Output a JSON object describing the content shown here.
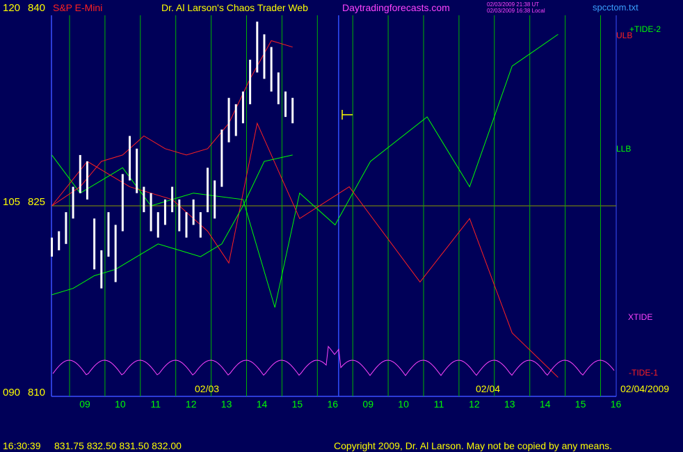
{
  "header": {
    "left_price_top": "120",
    "left_value_top": "840",
    "symbol": "S&P E-Mini",
    "title": "Dr. Al Larson's Chaos Trader Web",
    "site": "Daytradingforecasts.com",
    "stamp_ut": "02/03/2009 21:38 UT",
    "stamp_local": "02/03/2009 16:38 Local",
    "file": "spcctom.txt"
  },
  "left_axis": {
    "mid_price": "105",
    "mid_value": "825",
    "bottom_price": "090",
    "bottom_value": "810"
  },
  "labels": {
    "tide2": "+TIDE-2",
    "ulb": "ULB",
    "llb": "LLB",
    "xtide": "XTIDE",
    "tide1": "-TIDE-1",
    "date_a": "02/03",
    "date_b": "02/04",
    "date_end": "02/04/2009"
  },
  "footer": {
    "time": "16:30:39",
    "quote": "831.75 832.50 831.50 832.00",
    "copyright": "Copyright 2009, Dr. Al Larson. May not be copied by any means."
  },
  "colors": {
    "background": "#000058",
    "grid": "#00b400",
    "price": "#ffffff",
    "ulb": "#ff2020",
    "llb": "#00ff00",
    "xtide": "#ff44ff",
    "axis": "#3a50ff",
    "text": "#ffff00"
  },
  "chart_data": {
    "type": "line",
    "title": "S&P E-Mini",
    "x_tick_labels": [
      "09",
      "10",
      "11",
      "12",
      "13",
      "14",
      "15",
      "16",
      "09",
      "10",
      "11",
      "12",
      "13",
      "14",
      "15",
      "16"
    ],
    "sessions": [
      "02/03",
      "02/04"
    ],
    "ylim": [
      810,
      840
    ],
    "y_ticks": [
      810,
      825,
      840
    ],
    "price_bars": [
      {
        "t": 0.0,
        "hi": 822.5,
        "lo": 821.0
      },
      {
        "t": 0.2,
        "hi": 823.0,
        "lo": 821.5
      },
      {
        "t": 0.4,
        "hi": 824.5,
        "lo": 822.0
      },
      {
        "t": 0.6,
        "hi": 826.5,
        "lo": 824.0
      },
      {
        "t": 0.8,
        "hi": 829.0,
        "lo": 826.0
      },
      {
        "t": 1.0,
        "hi": 828.5,
        "lo": 825.5
      },
      {
        "t": 1.2,
        "hi": 824.0,
        "lo": 820.0
      },
      {
        "t": 1.4,
        "hi": 821.5,
        "lo": 818.5
      },
      {
        "t": 1.6,
        "hi": 824.5,
        "lo": 821.0
      },
      {
        "t": 1.8,
        "hi": 823.5,
        "lo": 819.0
      },
      {
        "t": 2.0,
        "hi": 827.5,
        "lo": 823.0
      },
      {
        "t": 2.2,
        "hi": 830.5,
        "lo": 827.0
      },
      {
        "t": 2.4,
        "hi": 829.5,
        "lo": 826.0
      },
      {
        "t": 2.6,
        "hi": 826.5,
        "lo": 824.5
      },
      {
        "t": 2.8,
        "hi": 826.0,
        "lo": 823.0
      },
      {
        "t": 3.0,
        "hi": 824.5,
        "lo": 822.5
      },
      {
        "t": 3.2,
        "hi": 825.5,
        "lo": 823.5
      },
      {
        "t": 3.4,
        "hi": 826.5,
        "lo": 824.5
      },
      {
        "t": 3.6,
        "hi": 825.5,
        "lo": 823.0
      },
      {
        "t": 3.8,
        "hi": 824.5,
        "lo": 822.5
      },
      {
        "t": 4.0,
        "hi": 825.5,
        "lo": 823.5
      },
      {
        "t": 4.2,
        "hi": 824.5,
        "lo": 822.5
      },
      {
        "t": 4.4,
        "hi": 828.0,
        "lo": 824.5
      },
      {
        "t": 4.6,
        "hi": 827.0,
        "lo": 824.0
      },
      {
        "t": 4.8,
        "hi": 831.0,
        "lo": 826.5
      },
      {
        "t": 5.0,
        "hi": 833.5,
        "lo": 830.0
      },
      {
        "t": 5.2,
        "hi": 833.0,
        "lo": 830.5
      },
      {
        "t": 5.4,
        "hi": 834.0,
        "lo": 831.5
      },
      {
        "t": 5.6,
        "hi": 836.5,
        "lo": 833.0
      },
      {
        "t": 5.8,
        "hi": 839.5,
        "lo": 835.5
      },
      {
        "t": 6.0,
        "hi": 838.5,
        "lo": 835.0
      },
      {
        "t": 6.2,
        "hi": 837.5,
        "lo": 834.0
      },
      {
        "t": 6.4,
        "hi": 835.5,
        "lo": 833.0
      },
      {
        "t": 6.6,
        "hi": 834.0,
        "lo": 832.0
      },
      {
        "t": 6.8,
        "hi": 833.5,
        "lo": 831.5
      }
    ],
    "ulb_curve": [
      {
        "t": 0.0,
        "v": 825.0
      },
      {
        "t": 0.8,
        "v": 826.5
      },
      {
        "t": 1.4,
        "v": 828.5
      },
      {
        "t": 2.0,
        "v": 829.0
      },
      {
        "t": 2.6,
        "v": 830.5
      },
      {
        "t": 3.2,
        "v": 829.5
      },
      {
        "t": 3.8,
        "v": 829.0
      },
      {
        "t": 4.4,
        "v": 829.5
      },
      {
        "t": 5.0,
        "v": 831.5
      },
      {
        "t": 5.6,
        "v": 835.0
      },
      {
        "t": 6.2,
        "v": 838.0
      },
      {
        "t": 6.8,
        "v": 837.5
      }
    ],
    "llb_curve": [
      {
        "t": 0.0,
        "v": 818.0
      },
      {
        "t": 0.6,
        "v": 818.5
      },
      {
        "t": 1.2,
        "v": 819.5
      },
      {
        "t": 1.8,
        "v": 820.0
      },
      {
        "t": 2.4,
        "v": 821.0
      },
      {
        "t": 3.0,
        "v": 822.0
      },
      {
        "t": 3.6,
        "v": 821.5
      },
      {
        "t": 4.2,
        "v": 821.0
      },
      {
        "t": 4.8,
        "v": 822.0
      },
      {
        "t": 5.4,
        "v": 825.0
      },
      {
        "t": 6.0,
        "v": 828.5
      },
      {
        "t": 6.8,
        "v": 829.0
      }
    ],
    "tide2_curve": [
      {
        "t": 0.0,
        "v": 829.0
      },
      {
        "t": 0.8,
        "v": 826.0
      },
      {
        "t": 2.0,
        "v": 828.0
      },
      {
        "t": 2.8,
        "v": 825.0
      },
      {
        "t": 4.0,
        "v": 826.0
      },
      {
        "t": 5.4,
        "v": 825.5
      },
      {
        "t": 6.3,
        "v": 817.0
      },
      {
        "t": 7.0,
        "v": 826.0
      },
      {
        "t": 8.0,
        "v": 823.5
      },
      {
        "t": 9.0,
        "v": 828.5
      },
      {
        "t": 10.6,
        "v": 832.0
      },
      {
        "t": 11.8,
        "v": 826.5
      },
      {
        "t": 13.0,
        "v": 836.0
      },
      {
        "t": 14.3,
        "v": 838.5
      }
    ],
    "tide1_curve": [
      {
        "t": 0.0,
        "v": 825.0
      },
      {
        "t": 1.0,
        "v": 828.5
      },
      {
        "t": 2.2,
        "v": 826.5
      },
      {
        "t": 3.4,
        "v": 825.5
      },
      {
        "t": 4.4,
        "v": 823.0
      },
      {
        "t": 5.0,
        "v": 820.5
      },
      {
        "t": 5.8,
        "v": 831.5
      },
      {
        "t": 7.0,
        "v": 824.0
      },
      {
        "t": 8.4,
        "v": 826.5
      },
      {
        "t": 10.4,
        "v": 819.0
      },
      {
        "t": 11.8,
        "v": 824.0
      },
      {
        "t": 13.0,
        "v": 815.0
      },
      {
        "t": 14.3,
        "v": 811.5
      }
    ]
  }
}
